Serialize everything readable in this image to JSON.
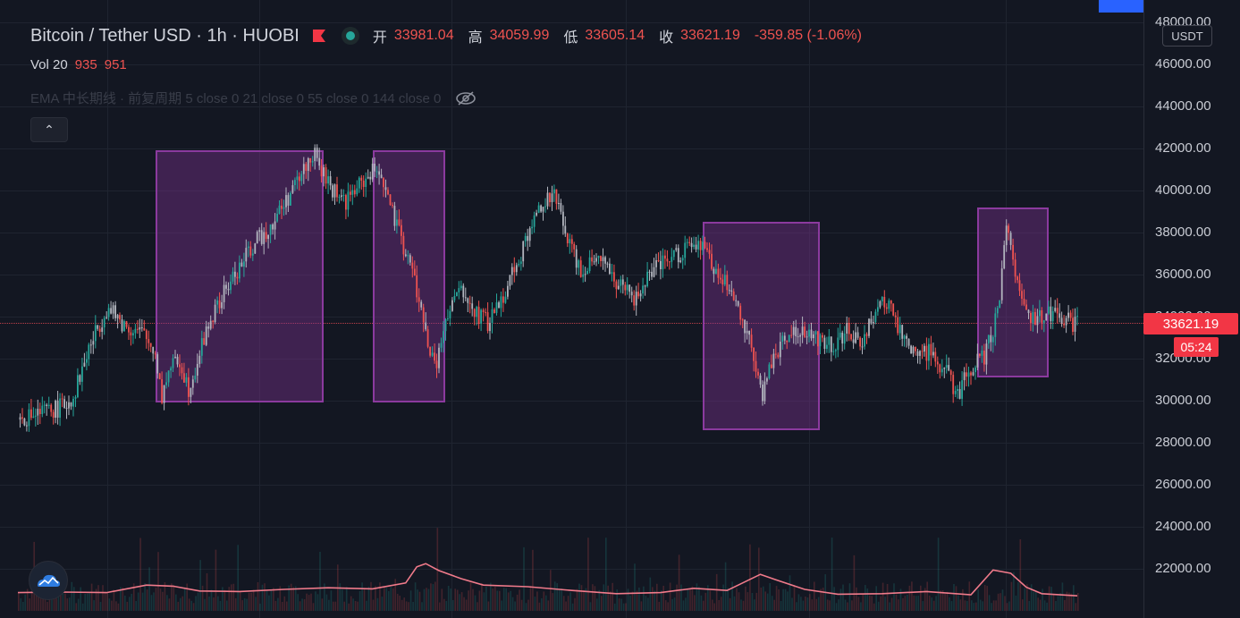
{
  "header": {
    "symbol_title": "Bitcoin / Tether USD · 1h · HUOBI",
    "ohlc": {
      "open_label": "开",
      "open": "33981.04",
      "high_label": "高",
      "high": "34059.99",
      "low_label": "低",
      "low": "33605.14",
      "close_label": "收",
      "close": "33621.19",
      "change": "-359.85 (-1.06%)"
    },
    "volume": {
      "label": "Vol 20",
      "value1": "935",
      "value2": "951"
    },
    "ema_text": "EMA 中长期线 · 前复周期 5 close 0 21 close 0 55 close 0 144 close 0",
    "collapse_glyph": "⌃"
  },
  "price_axis": {
    "currency_badge": "USDT",
    "current_price": "33621.19",
    "countdown": "05:24"
  },
  "colors": {
    "background": "#131722",
    "up": "#26a69a",
    "down": "#ef5350",
    "wick_neutral": "#b2b5be",
    "highlight_zone": "#7b3192",
    "volume_ma": "#f07a8a",
    "accent_blue": "#2962ff"
  },
  "icons": [
    "flag-icon",
    "status-dot-icon",
    "eye-crossed-icon",
    "chevron-up-icon",
    "tradingview-cloud-logo-icon"
  ],
  "chart_data": {
    "type": "candlestick",
    "title": "Bitcoin / Tether USD · 1h · HUOBI",
    "ylim": [
      20300,
      48300
    ],
    "y_ticks": [
      22000,
      24000,
      26000,
      28000,
      30000,
      32000,
      34000,
      36000,
      38000,
      40000,
      42000,
      44000,
      46000,
      48000
    ],
    "y_tick_labels": [
      "22000.00",
      "24000.00",
      "26000.00",
      "28000.00",
      "30000.00",
      "32000.00",
      "34000.00",
      "36000.00",
      "38000.00",
      "40000.00",
      "42000.00",
      "44000.00",
      "46000.00",
      "48000.00"
    ],
    "last_price": 33621.19,
    "bar_count": 400,
    "price_path": [
      [
        0,
        29100
      ],
      [
        10,
        29400
      ],
      [
        20,
        29700
      ],
      [
        25,
        30200
      ],
      [
        32,
        32500
      ],
      [
        40,
        34400
      ],
      [
        48,
        33600
      ],
      [
        56,
        33200
      ],
      [
        62,
        32300
      ],
      [
        65,
        30200
      ],
      [
        68,
        31500
      ],
      [
        73,
        31900
      ],
      [
        77,
        30600
      ],
      [
        80,
        31600
      ],
      [
        86,
        33600
      ],
      [
        95,
        35500
      ],
      [
        105,
        37200
      ],
      [
        115,
        38500
      ],
      [
        125,
        40200
      ],
      [
        133,
        41800
      ],
      [
        140,
        40300
      ],
      [
        148,
        39500
      ],
      [
        157,
        40600
      ],
      [
        163,
        41100
      ],
      [
        170,
        38500
      ],
      [
        178,
        36200
      ],
      [
        184,
        33200
      ],
      [
        188,
        31500
      ],
      [
        193,
        33600
      ],
      [
        199,
        35300
      ],
      [
        206,
        34200
      ],
      [
        212,
        33700
      ],
      [
        217,
        34600
      ],
      [
        223,
        36100
      ],
      [
        230,
        37800
      ],
      [
        236,
        39400
      ],
      [
        242,
        39700
      ],
      [
        248,
        37800
      ],
      [
        254,
        36200
      ],
      [
        262,
        37100
      ],
      [
        270,
        35600
      ],
      [
        278,
        34800
      ],
      [
        286,
        36100
      ],
      [
        294,
        36700
      ],
      [
        302,
        37300
      ],
      [
        310,
        37200
      ],
      [
        316,
        35900
      ],
      [
        322,
        35200
      ],
      [
        328,
        33600
      ],
      [
        332,
        32200
      ],
      [
        336,
        30200
      ],
      [
        340,
        31900
      ],
      [
        346,
        33100
      ],
      [
        352,
        33300
      ],
      [
        360,
        33000
      ],
      [
        368,
        32700
      ],
      [
        374,
        33300
      ],
      [
        380,
        32600
      ],
      [
        386,
        34100
      ],
      [
        392,
        34700
      ],
      [
        399,
        33000
      ],
      [
        405,
        32200
      ],
      [
        412,
        32400
      ],
      [
        418,
        31500
      ],
      [
        424,
        30300
      ],
      [
        430,
        31500
      ],
      [
        436,
        32100
      ],
      [
        442,
        34100
      ],
      [
        446,
        38100
      ],
      [
        450,
        36200
      ],
      [
        456,
        34100
      ],
      [
        462,
        33900
      ],
      [
        468,
        34300
      ],
      [
        474,
        33800
      ],
      [
        478,
        33621
      ]
    ],
    "candle_ranges": [
      {
        "from": 0,
        "to": 478
      }
    ],
    "highlight_zones": [
      {
        "x_start": 62,
        "x_end": 138,
        "y_low": 29900,
        "y_high": 41900
      },
      {
        "x_start": 160,
        "x_end": 193,
        "y_low": 29900,
        "y_high": 41900
      },
      {
        "x_start": 309,
        "x_end": 362,
        "y_low": 28600,
        "y_high": 38500
      },
      {
        "x_start": 433,
        "x_end": 465,
        "y_low": 31100,
        "y_high": 39200
      }
    ],
    "volume_ma_path": [
      [
        0,
        0.14
      ],
      [
        20,
        0.15
      ],
      [
        40,
        0.14
      ],
      [
        58,
        0.28
      ],
      [
        70,
        0.26
      ],
      [
        82,
        0.17
      ],
      [
        100,
        0.16
      ],
      [
        120,
        0.2
      ],
      [
        140,
        0.23
      ],
      [
        160,
        0.21
      ],
      [
        175,
        0.32
      ],
      [
        180,
        0.62
      ],
      [
        184,
        0.68
      ],
      [
        190,
        0.55
      ],
      [
        200,
        0.4
      ],
      [
        210,
        0.28
      ],
      [
        230,
        0.25
      ],
      [
        250,
        0.18
      ],
      [
        270,
        0.12
      ],
      [
        290,
        0.14
      ],
      [
        305,
        0.22
      ],
      [
        320,
        0.18
      ],
      [
        335,
        0.48
      ],
      [
        342,
        0.38
      ],
      [
        355,
        0.2
      ],
      [
        370,
        0.11
      ],
      [
        390,
        0.12
      ],
      [
        410,
        0.16
      ],
      [
        430,
        0.1
      ],
      [
        440,
        0.56
      ],
      [
        448,
        0.5
      ],
      [
        455,
        0.24
      ],
      [
        462,
        0.12
      ],
      [
        478,
        0.08
      ]
    ]
  }
}
